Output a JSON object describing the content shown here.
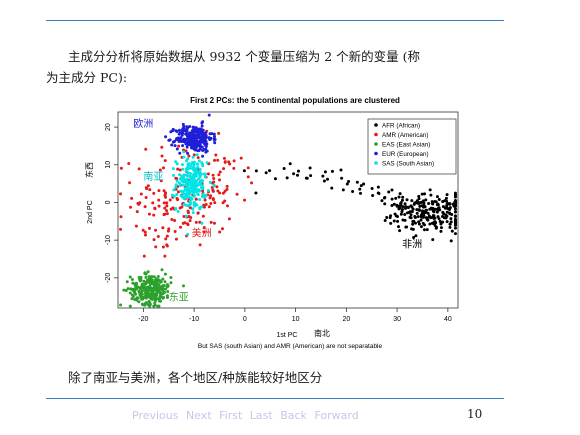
{
  "slide": {
    "intro_line1": "主成分分析将原始数据从 9932 个变量压缩为 2 个新的变量 (称",
    "intro_line2": "为主成分 PC):",
    "conclusion": "除了南亚与美洲，各个地区/种族能较好地区分",
    "page_number": "10"
  },
  "nav": {
    "previous": "Previous",
    "next": "Next",
    "first": "First",
    "last": "Last",
    "back": "Back",
    "forward": "Forward"
  },
  "chart_data": {
    "type": "scatter",
    "title": "First 2 PCs: the 5 continental populations are clustered",
    "xlabel": "1st PC",
    "xlabel_annotation": "南北",
    "ylabel": "2nd PC",
    "ylabel_annotation": "东西",
    "caption": "But SAS (south Asian) and AMR (American) are not separatable",
    "xlim": [
      -25,
      42
    ],
    "ylim": [
      -28,
      24
    ],
    "xticks": [
      "-20",
      "-10",
      "0",
      "10",
      "20",
      "30",
      "40"
    ],
    "yticks": [
      "-20",
      "-10",
      "0",
      "10",
      "20"
    ],
    "legend_position": "top-right",
    "series": [
      {
        "name": "AFR (African)",
        "color": "#000000",
        "center": [
          37,
          -3
        ],
        "spread": [
          4,
          2.5
        ],
        "n": 220
      },
      {
        "name": "AMR (American)",
        "color": "#e41a1c",
        "center": [
          -12,
          2
        ],
        "spread": [
          5,
          7
        ],
        "n": 160
      },
      {
        "name": "EAS (East Asian)",
        "color": "#2ca02c",
        "center": [
          -18.5,
          -23
        ],
        "spread": [
          2,
          2
        ],
        "n": 260
      },
      {
        "name": "EUR (European)",
        "color": "#1f1fd8",
        "center": [
          -10,
          17
        ],
        "spread": [
          1.8,
          1.8
        ],
        "n": 260
      },
      {
        "name": "SAS (South Asian)",
        "color": "#00e5e5",
        "center": [
          -10.5,
          5
        ],
        "spread": [
          1.5,
          3.5
        ],
        "n": 220
      }
    ],
    "admix_path": [
      [
        -2,
        10
      ],
      [
        8,
        8
      ],
      [
        16,
        6
      ],
      [
        24,
        4
      ],
      [
        30,
        0
      ],
      [
        36,
        -3
      ]
    ],
    "cluster_labels": [
      {
        "text": "欧洲",
        "x": -22,
        "y": 20,
        "color": "#1f1fd8"
      },
      {
        "text": "南亚",
        "x": -20,
        "y": 6,
        "color": "#00c0c0"
      },
      {
        "text": "美洲",
        "x": -10.5,
        "y": -9,
        "color": "#e41a1c"
      },
      {
        "text": "非洲",
        "x": 31,
        "y": -12,
        "color": "#000000"
      },
      {
        "text": "东亚",
        "x": -15,
        "y": -26,
        "color": "#2ca02c"
      }
    ]
  }
}
